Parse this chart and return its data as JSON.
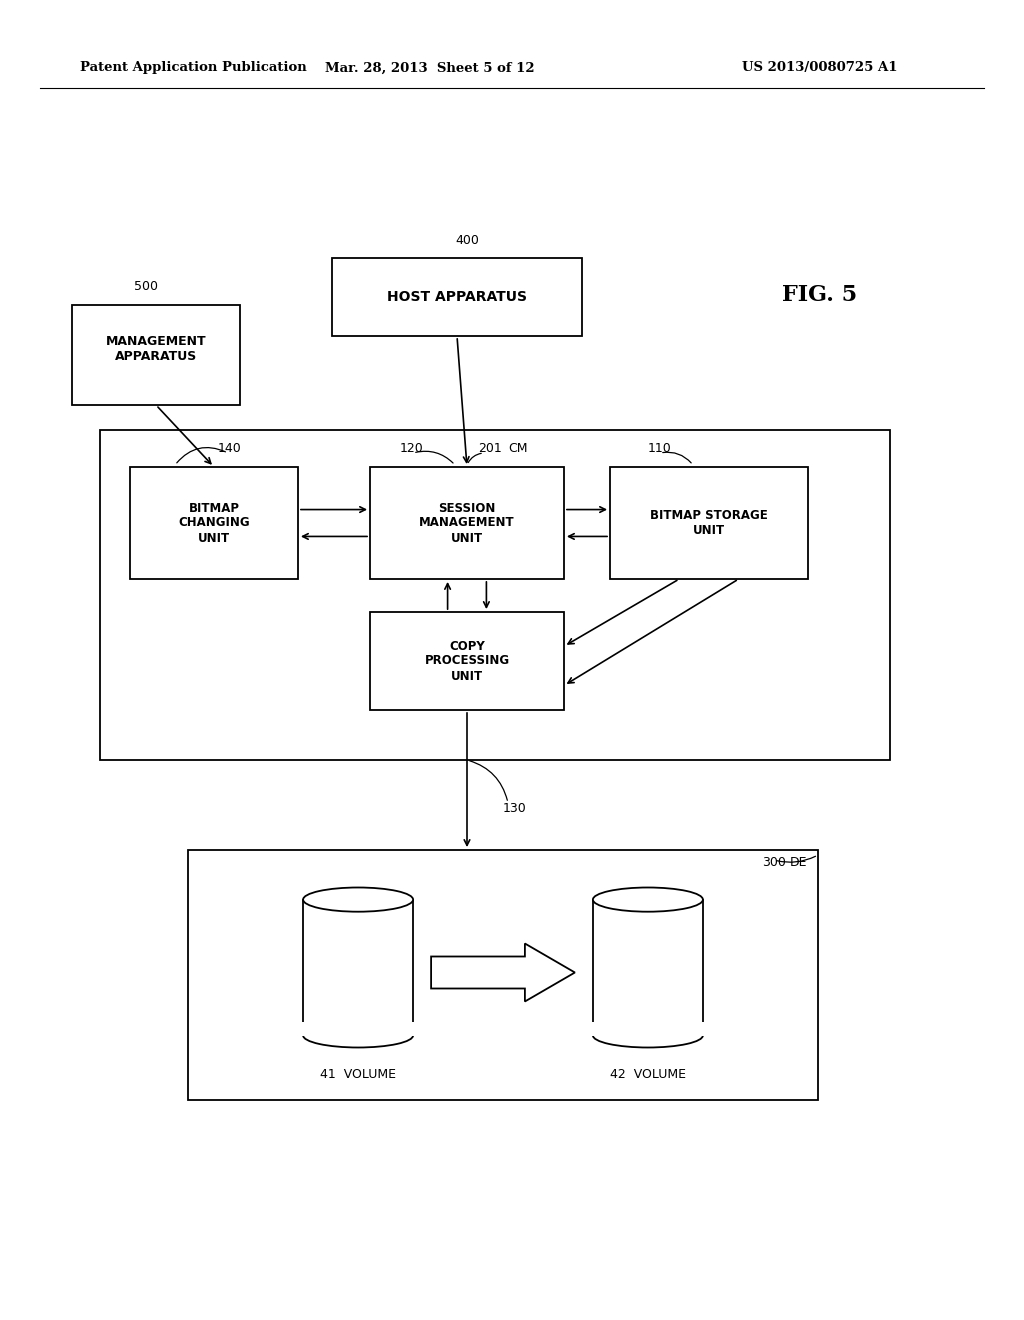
{
  "bg_color": "#ffffff",
  "header_left": "Patent Application Publication",
  "header_mid": "Mar. 28, 2013  Sheet 5 of 12",
  "header_right": "US 2013/0080725 A1",
  "fig_label": "FIG. 5"
}
